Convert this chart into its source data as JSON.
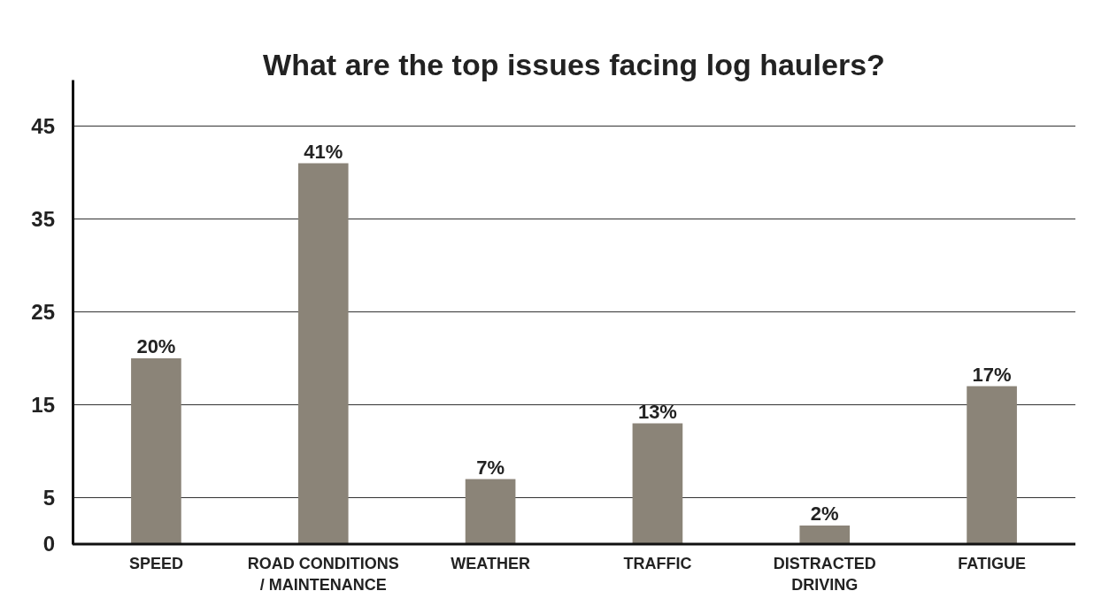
{
  "chart_data": {
    "type": "bar",
    "title": "What are the top issues facing log haulers?",
    "categories": [
      "SPEED",
      "ROAD CONDITIONS / MAINTENANCE",
      "WEATHER",
      "TRAFFIC",
      "DISTRACTED DRIVING",
      "FATIGUE"
    ],
    "values": [
      20,
      41,
      7,
      13,
      2,
      17
    ],
    "value_labels": [
      "20%",
      "41%",
      "7%",
      "13%",
      "2%",
      "17%"
    ],
    "color": "#8b8478",
    "ylim": [
      0,
      50
    ],
    "yticks": [
      0,
      5,
      15,
      25,
      35,
      45
    ],
    "grid": "y"
  }
}
